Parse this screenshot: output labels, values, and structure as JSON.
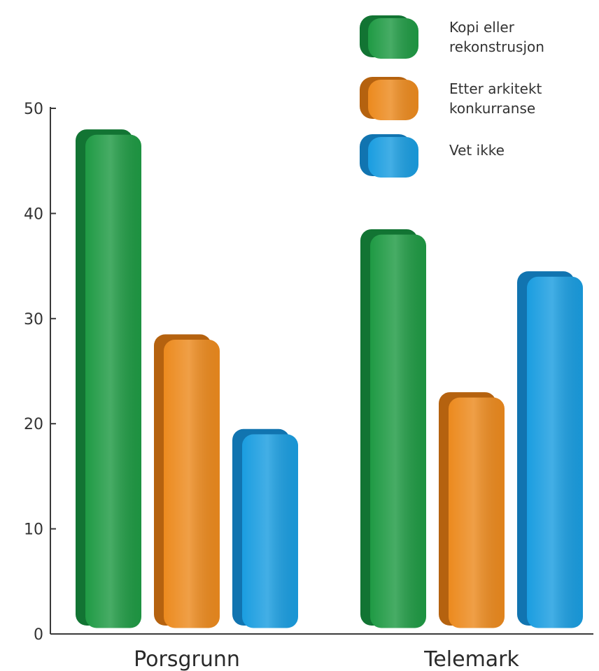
{
  "chart_data": {
    "type": "bar",
    "categories": [
      "Porsgrunn",
      "Telemark"
    ],
    "series": [
      {
        "name": "Kopi eller rekonstrusjon",
        "legend_lines": [
          "Kopi eller",
          "rekonstrusjon"
        ],
        "color": "#1f9a44",
        "dark": "#127433",
        "values": [
          48,
          38.5
        ]
      },
      {
        "name": "Etter arkitekt konkurranse",
        "legend_lines": [
          "Etter arkitekt",
          "konkurranse"
        ],
        "color": "#ec8a1e",
        "dark": "#b5620f",
        "values": [
          28.5,
          23
        ]
      },
      {
        "name": "Vet ikke",
        "legend_lines": [
          "Vet ikke"
        ],
        "color": "#1a9de0",
        "dark": "#1174b0",
        "values": [
          19.5,
          34.5
        ]
      }
    ],
    "yticks": [
      0,
      10,
      20,
      30,
      40,
      50
    ],
    "ylim": [
      0,
      50
    ],
    "legend_position": "top-right",
    "grid": false
  }
}
